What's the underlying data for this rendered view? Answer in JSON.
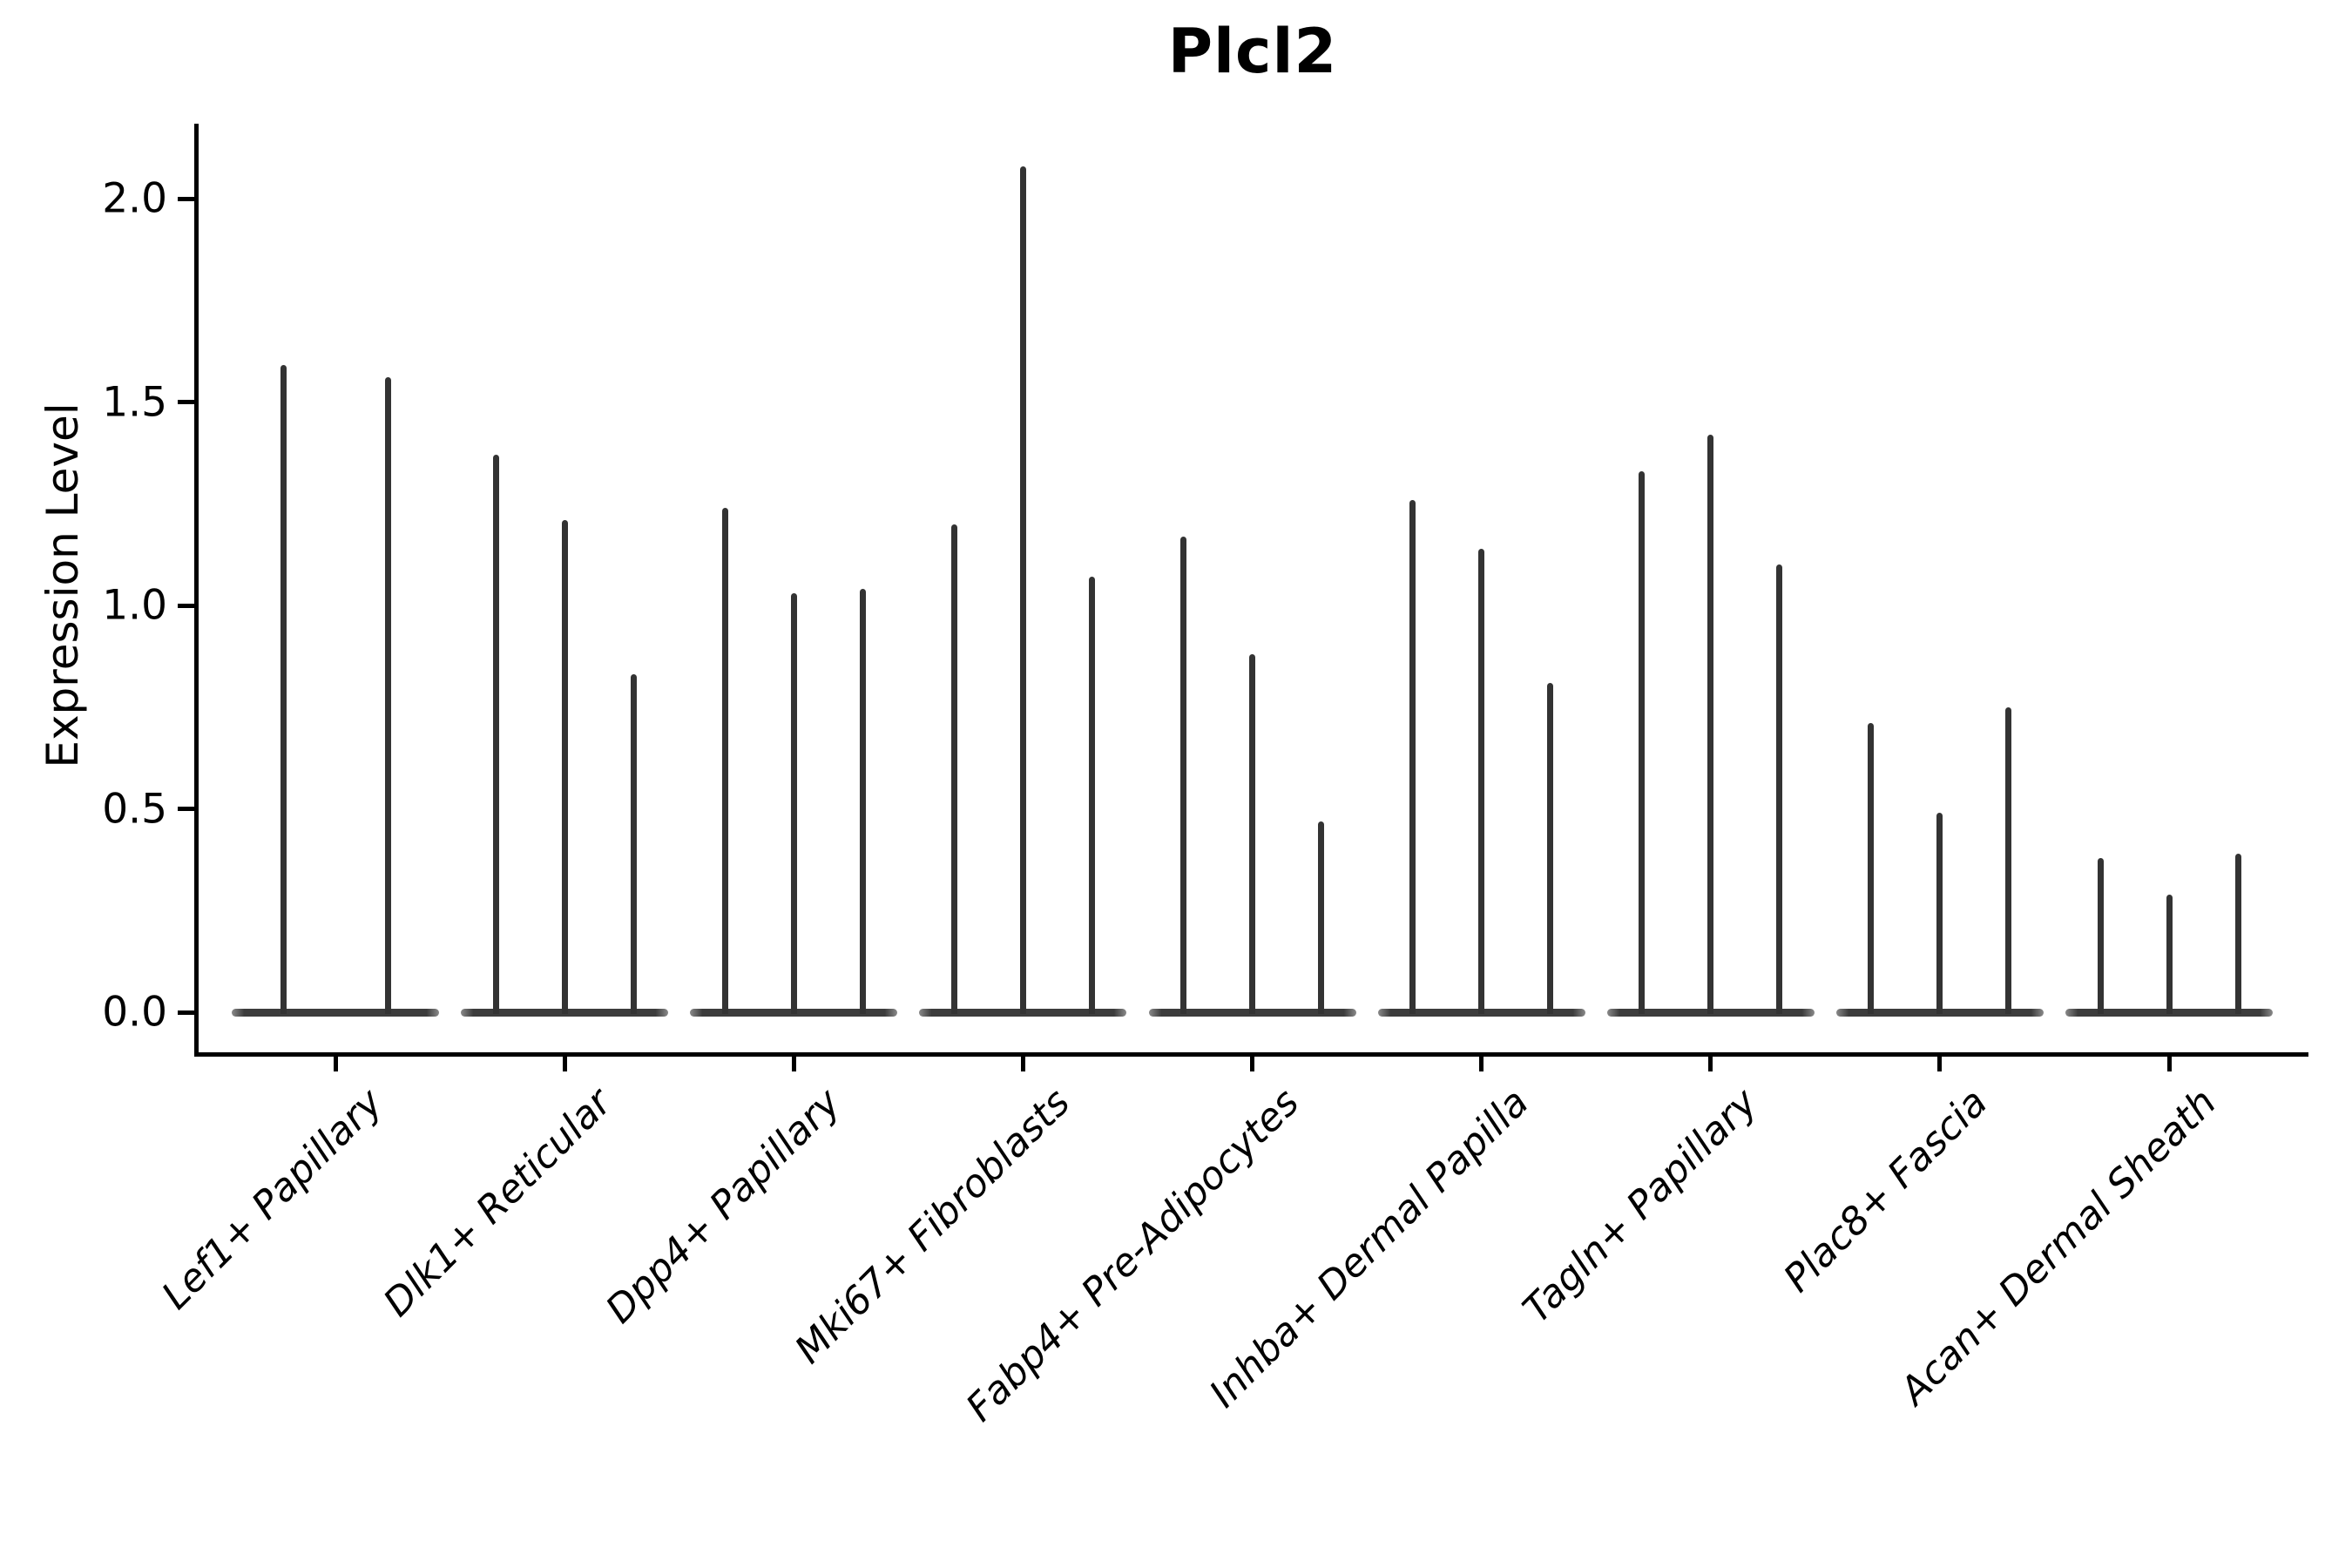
{
  "figure": {
    "background": "#ffffff",
    "ink_color": "#000000",
    "violin_color": "#3a3a3a"
  },
  "chart_data": {
    "type": "violin",
    "title": "Plcl2",
    "ylabel": "Expression Level",
    "xlabel": "",
    "ylim": [
      -0.1,
      2.18
    ],
    "yticks": [
      "0.0",
      "0.5",
      "1.0",
      "1.5",
      "2.0"
    ],
    "grid": false,
    "legend": false,
    "categories": [
      "Lef1+ Papillary",
      "Dlk1+ Reticular",
      "Dpp4+ Papillary",
      "Mki67+ Fibroblasts",
      "Fabp4+ Pre-Adipocytes",
      "Inhba+ Dermal Papilla",
      "Tagln+ Papillary",
      "Plac8+ Fascia",
      "Acan+ Dermal Sheath"
    ],
    "groups": [
      {
        "label": "Lef1+ Papillary",
        "violin_maxima": [
          1.59,
          1.56
        ]
      },
      {
        "label": "Dlk1+ Reticular",
        "violin_maxima": [
          1.37,
          1.21,
          0.83
        ]
      },
      {
        "label": "Dpp4+ Papillary",
        "violin_maxima": [
          1.24,
          1.03,
          1.04
        ]
      },
      {
        "label": "Mki67+ Fibroblasts",
        "violin_maxima": [
          1.2,
          2.08,
          1.07
        ]
      },
      {
        "label": "Fabp4+ Pre-Adipocytes",
        "violin_maxima": [
          1.17,
          0.88,
          0.47
        ]
      },
      {
        "label": "Inhba+ Dermal Papilla",
        "violin_maxima": [
          1.26,
          1.14,
          0.81
        ]
      },
      {
        "label": "Tagln+ Papillary",
        "violin_maxima": [
          1.33,
          1.42,
          1.1
        ]
      },
      {
        "label": "Plac8+ Fascia",
        "violin_maxima": [
          0.71,
          0.49,
          0.75
        ]
      },
      {
        "label": "Acan+ Dermal Sheath",
        "violin_maxima": [
          0.38,
          0.29,
          0.39
        ]
      }
    ]
  }
}
